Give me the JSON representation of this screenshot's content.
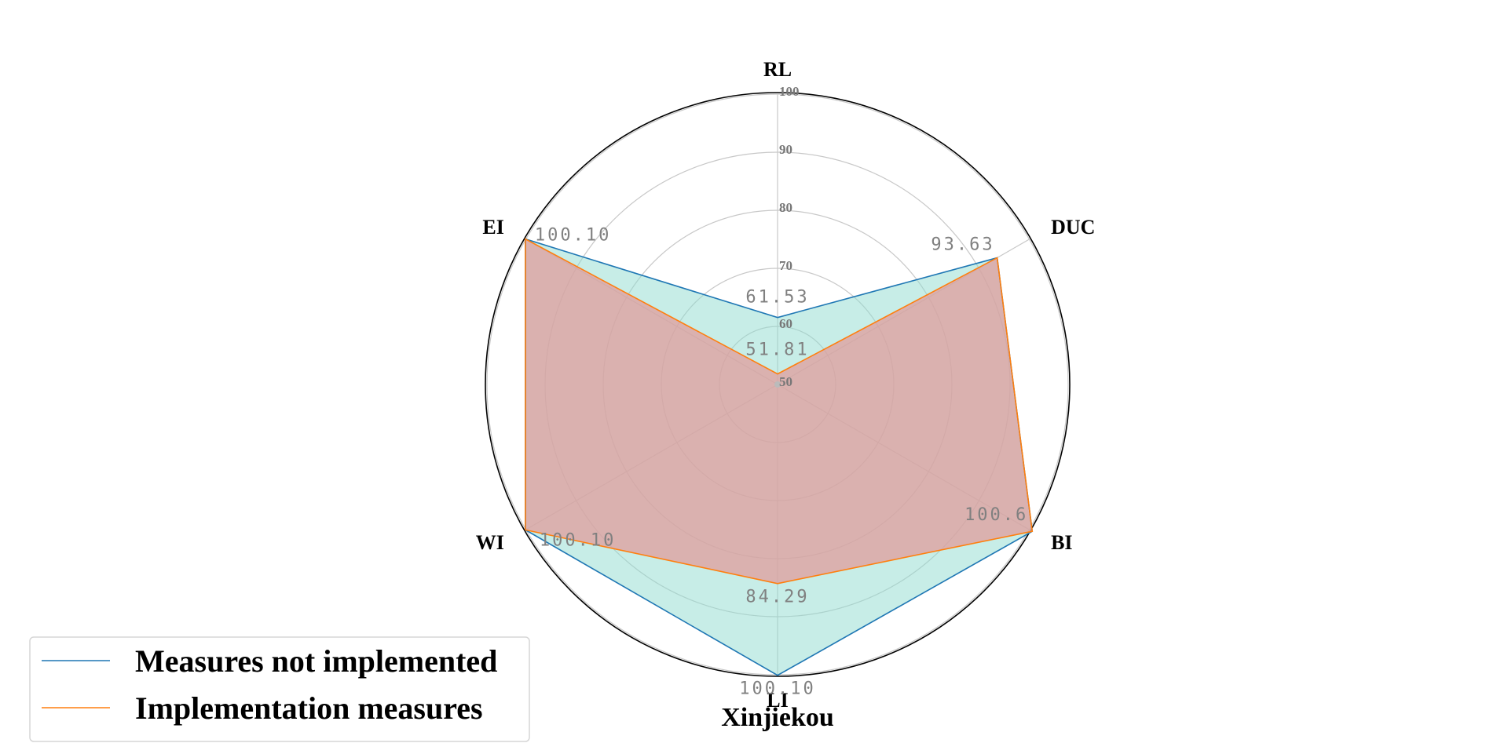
{
  "chart_data": {
    "type": "radar",
    "title": "Xinjiekou",
    "axes": [
      "RL",
      "DUC",
      "BI",
      "LI",
      "WI",
      "EI"
    ],
    "rlim": [
      50,
      100
    ],
    "rticks": [
      "50",
      "60",
      "70",
      "80",
      "90",
      "100"
    ],
    "grid": true,
    "legend_position": "lower-left",
    "series": [
      {
        "name": "Measures not implemented",
        "values": [
          61.53,
          93.63,
          100.6,
          100.1,
          100.1,
          100.1
        ],
        "line_color": "#1f77b4",
        "fill_color": "#8fdccf"
      },
      {
        "name": "Implementation measures",
        "values": [
          51.81,
          93.63,
          100.6,
          84.29,
          100.1,
          100.1
        ],
        "line_color": "#ff7f0e",
        "fill_color": "#e29a9a"
      }
    ],
    "value_labels": [
      {
        "text": "61.53",
        "axis": 0,
        "value": 61.53
      },
      {
        "text": "51.81",
        "axis": 0,
        "value": 51.81
      },
      {
        "text": "93.63",
        "axis": 1,
        "value": 93.63
      },
      {
        "text": "100.6",
        "axis": 2,
        "value": 100.6
      },
      {
        "text": "84.29",
        "axis": 3,
        "value": 84.29
      },
      {
        "text": "100.10",
        "axis": 3,
        "value": 100.1
      },
      {
        "text": "100.10",
        "axis": 4,
        "value": 100.1
      },
      {
        "text": "100.10",
        "axis": 5,
        "value": 100.1
      }
    ]
  }
}
